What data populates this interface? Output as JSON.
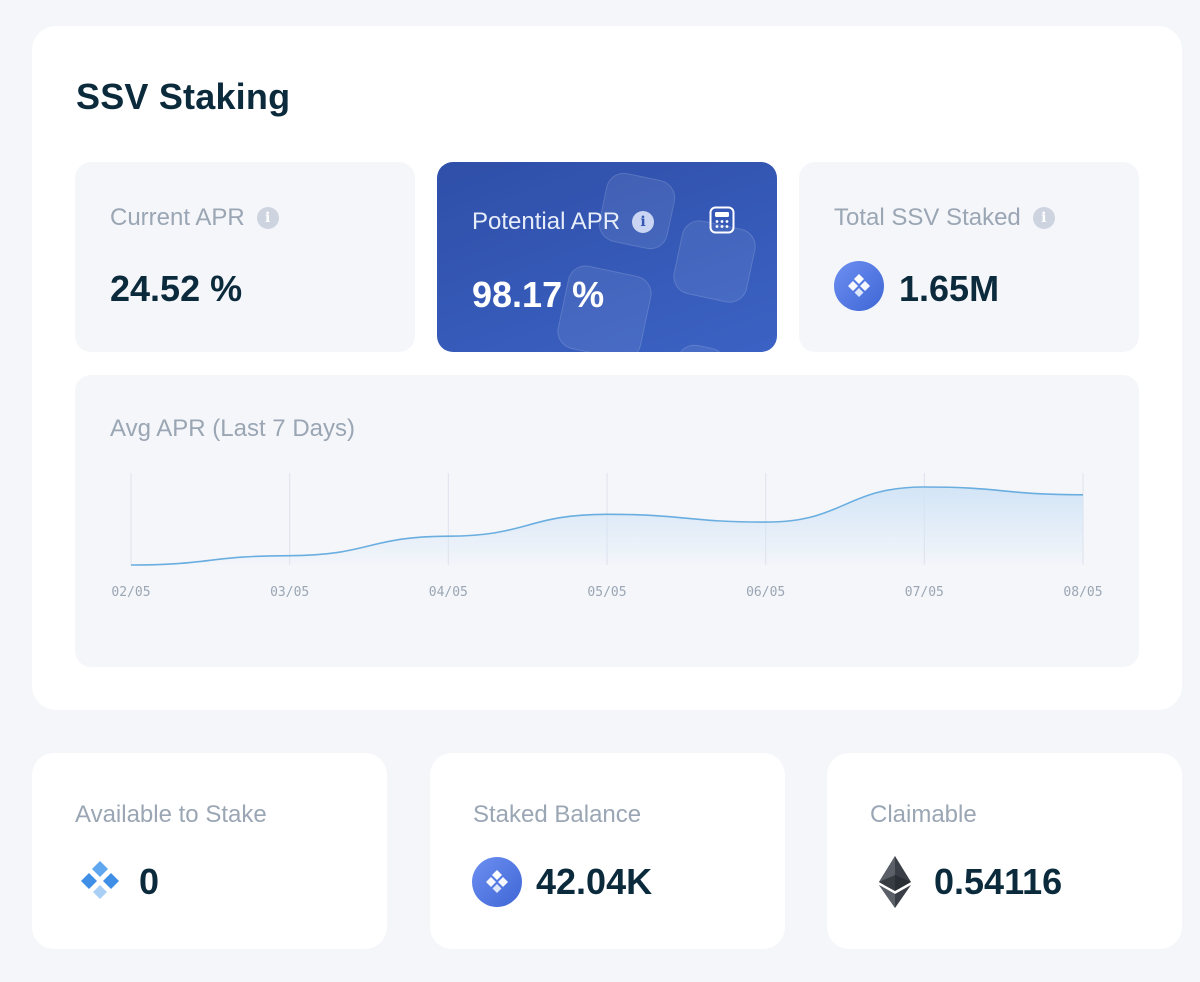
{
  "page": {
    "title": "SSV Staking"
  },
  "stats": {
    "current_apr": {
      "label": "Current APR",
      "value": "24.52 %",
      "info_icon": "info-icon"
    },
    "potential_apr": {
      "label": "Potential APR",
      "value": "98.17 %",
      "info_icon": "info-icon",
      "calc_icon": "calculator-icon"
    },
    "total_staked": {
      "label": "Total SSV Staked",
      "value": "1.65M",
      "info_icon": "info-icon",
      "token_icon": "ssv-token-icon"
    }
  },
  "chart_data": {
    "type": "area",
    "title": "Avg APR (Last 7 Days)",
    "categories": [
      "02/05",
      "03/05",
      "04/05",
      "05/05",
      "06/05",
      "07/05",
      "08/05"
    ],
    "values": [
      0.0,
      0.12,
      0.37,
      0.65,
      0.55,
      1.0,
      0.9
    ],
    "grid": true,
    "colors": {
      "line": "#6aaee0",
      "fill": "#cfe3f6"
    }
  },
  "balances": {
    "available": {
      "label": "Available to Stake",
      "value": "0",
      "icon": "ssv-logo-icon"
    },
    "staked": {
      "label": "Staked Balance",
      "value": "42.04K",
      "icon": "ssv-token-icon"
    },
    "claimable": {
      "label": "Claimable",
      "value": "0.54116",
      "icon": "ethereum-icon"
    }
  },
  "colors": {
    "accent": "#3556b3",
    "background": "#f5f6fa",
    "text": "#0b2a3c",
    "muted": "#9aa6b4"
  }
}
